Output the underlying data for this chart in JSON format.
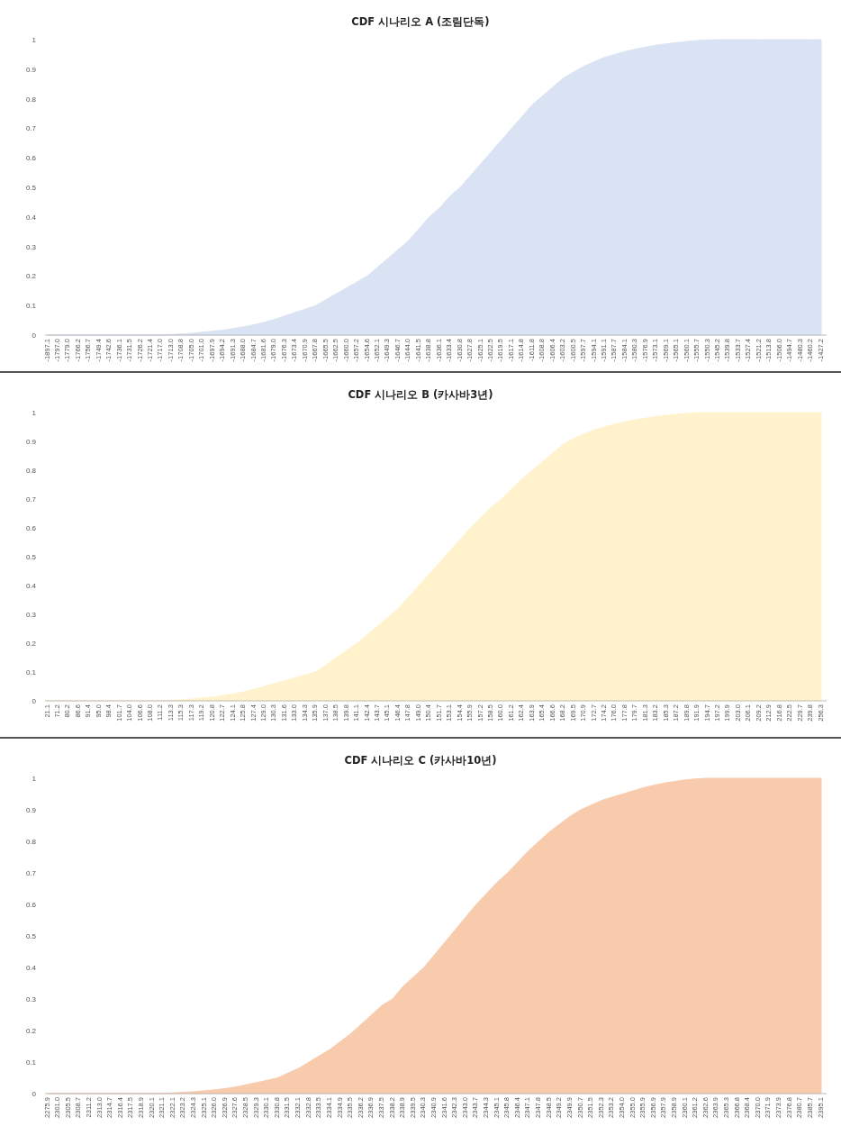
{
  "chart_data": [
    {
      "type": "area",
      "title": "CDF 시나리오 A (조림단독)",
      "categories": [
        "-1897.1",
        "-1797.0",
        "-1779.0",
        "-1766.2",
        "-1756.7",
        "-1749.4",
        "-1742.6",
        "-1736.1",
        "-1731.5",
        "-1726.2",
        "-1721.4",
        "-1717.0",
        "-1713.0",
        "-1708.8",
        "-1705.0",
        "-1701.0",
        "-1697.9",
        "-1694.2",
        "-1691.3",
        "-1688.0",
        "-1684.7",
        "-1681.6",
        "-1679.0",
        "-1676.3",
        "-1673.4",
        "-1670.9",
        "-1667.8",
        "-1665.5",
        "-1662.5",
        "-1660.0",
        "-1657.2",
        "-1654.6",
        "-1652.1",
        "-1649.3",
        "-1646.7",
        "-1644.0",
        "-1641.5",
        "-1638.8",
        "-1636.1",
        "-1633.4",
        "-1630.8",
        "-1627.8",
        "-1625.1",
        "-1622.5",
        "-1619.5",
        "-1617.1",
        "-1614.8",
        "-1611.8",
        "-1608.8",
        "-1606.4",
        "-1603.2",
        "-1600.5",
        "-1597.7",
        "-1594.1",
        "-1591.1",
        "-1587.7",
        "-1584.1",
        "-1580.3",
        "-1576.9",
        "-1573.1",
        "-1569.1",
        "-1565.1",
        "-1560.1",
        "-1555.7",
        "-1550.3",
        "-1545.2",
        "-1539.8",
        "-1533.7",
        "-1527.4",
        "-1521.2",
        "-1513.8",
        "-1506.0",
        "-1494.7",
        "-1480.3",
        "-1460.2",
        "-1427.2"
      ],
      "series": [
        {
          "color": "#dae3f3",
          "values": [
            0,
            0,
            0,
            0,
            0,
            0,
            0,
            0,
            0,
            0,
            0,
            0.001,
            0.002,
            0.004,
            0.006,
            0.01,
            0.013,
            0.017,
            0.022,
            0.028,
            0.035,
            0.043,
            0.053,
            0.065,
            0.077,
            0.088,
            0.1,
            0.12,
            0.14,
            0.16,
            0.18,
            0.2,
            0.23,
            0.26,
            0.29,
            0.32,
            0.36,
            0.4,
            0.43,
            0.47,
            0.5,
            0.54,
            0.58,
            0.62,
            0.66,
            0.7,
            0.74,
            0.78,
            0.81,
            0.84,
            0.87,
            0.89,
            0.91,
            0.925,
            0.94,
            0.95,
            0.96,
            0.968,
            0.975,
            0.981,
            0.986,
            0.99,
            0.994,
            0.997,
            0.999,
            1,
            1,
            1,
            1,
            1,
            1,
            1,
            1,
            1,
            1,
            1
          ]
        }
      ],
      "ylim": [
        0,
        1
      ],
      "yticks": [
        0,
        0.1,
        0.2,
        0.3,
        0.4,
        0.5,
        0.6,
        0.7,
        0.8,
        0.9,
        1
      ]
    },
    {
      "type": "area",
      "title": "CDF 시나리오 B (카사바3년)",
      "categories": [
        "21.1",
        "71.2",
        "80.2",
        "86.6",
        "91.4",
        "95.0",
        "98.4",
        "101.7",
        "104.0",
        "106.6",
        "108.0",
        "111.2",
        "113.3",
        "115.3",
        "117.3",
        "119.2",
        "120.8",
        "122.7",
        "124.1",
        "125.8",
        "127.4",
        "129.0",
        "130.3",
        "131.6",
        "133.0",
        "134.3",
        "135.9",
        "137.0",
        "138.5",
        "139.8",
        "141.1",
        "142.4",
        "143.7",
        "145.1",
        "146.4",
        "147.8",
        "149.0",
        "150.4",
        "151.7",
        "153.1",
        "154.4",
        "155.9",
        "157.2",
        "158.5",
        "160.0",
        "161.2",
        "162.4",
        "163.9",
        "165.4",
        "166.6",
        "168.2",
        "169.5",
        "170.9",
        "172.7",
        "174.2",
        "176.0",
        "177.8",
        "179.7",
        "181.3",
        "183.2",
        "185.3",
        "187.2",
        "189.8",
        "191.9",
        "194.7",
        "197.2",
        "199.9",
        "203.0",
        "206.1",
        "209.2",
        "212.9",
        "216.8",
        "222.5",
        "229.7",
        "239.8",
        "256.3"
      ],
      "series": [
        {
          "color": "#fff2cc",
          "values": [
            0,
            0,
            0,
            0,
            0,
            0,
            0,
            0,
            0,
            0,
            0,
            0,
            0.002,
            0.004,
            0.006,
            0.01,
            0.013,
            0.018,
            0.024,
            0.031,
            0.04,
            0.05,
            0.06,
            0.07,
            0.08,
            0.09,
            0.1,
            0.125,
            0.15,
            0.175,
            0.2,
            0.23,
            0.26,
            0.29,
            0.32,
            0.36,
            0.4,
            0.44,
            0.48,
            0.52,
            0.56,
            0.6,
            0.635,
            0.67,
            0.7,
            0.735,
            0.77,
            0.8,
            0.83,
            0.86,
            0.89,
            0.91,
            0.925,
            0.94,
            0.95,
            0.96,
            0.968,
            0.975,
            0.981,
            0.986,
            0.99,
            0.994,
            0.997,
            1,
            1,
            1,
            1,
            1,
            1,
            1,
            1,
            1,
            1,
            1,
            1,
            1
          ]
        }
      ],
      "ylim": [
        0,
        1
      ],
      "yticks": [
        0,
        0.1,
        0.2,
        0.3,
        0.4,
        0.5,
        0.6,
        0.7,
        0.8,
        0.9,
        1
      ]
    },
    {
      "type": "area",
      "title": "CDF 시나리오 C (카사바10년)",
      "categories": [
        "2275.9",
        "2301.0",
        "2305.5",
        "2308.7",
        "2311.2",
        "2313.0",
        "2314.7",
        "2316.4",
        "2317.5",
        "2318.9",
        "2320.1",
        "2321.1",
        "2322.1",
        "2323.2",
        "2324.3",
        "2325.1",
        "2326.0",
        "2326.9",
        "2327.6",
        "2328.5",
        "2329.3",
        "2330.1",
        "2330.8",
        "2331.5",
        "2332.1",
        "2332.8",
        "2333.5",
        "2334.1",
        "2334.9",
        "2335.5",
        "2336.2",
        "2336.9",
        "2337.5",
        "2338.2",
        "2338.9",
        "2339.5",
        "2340.3",
        "2340.9",
        "2341.6",
        "2342.3",
        "2343.0",
        "2343.7",
        "2344.3",
        "2345.1",
        "2345.8",
        "2346.4",
        "2347.1",
        "2347.8",
        "2348.5",
        "2349.2",
        "2349.9",
        "2350.7",
        "2351.5",
        "2352.3",
        "2353.2",
        "2354.0",
        "2355.0",
        "2355.9",
        "2356.9",
        "2357.9",
        "2358.9",
        "2360.1",
        "2361.2",
        "2362.6",
        "2363.9",
        "2365.3",
        "2366.8",
        "2368.4",
        "2370.0",
        "2371.9",
        "2373.9",
        "2376.8",
        "2380.7",
        "2385.7",
        "2395.1"
      ],
      "series": [
        {
          "color": "#f8cbad",
          "values": [
            0,
            0,
            0,
            0,
            0,
            0,
            0,
            0,
            0,
            0,
            0,
            0,
            0.002,
            0.004,
            0.006,
            0.009,
            0.012,
            0.016,
            0.021,
            0.028,
            0.035,
            0.042,
            0.05,
            0.065,
            0.08,
            0.1,
            0.12,
            0.14,
            0.165,
            0.19,
            0.22,
            0.25,
            0.28,
            0.3,
            0.34,
            0.37,
            0.4,
            0.44,
            0.48,
            0.52,
            0.56,
            0.6,
            0.635,
            0.67,
            0.7,
            0.735,
            0.77,
            0.8,
            0.83,
            0.855,
            0.88,
            0.9,
            0.915,
            0.93,
            0.94,
            0.95,
            0.96,
            0.97,
            0.978,
            0.985,
            0.99,
            0.995,
            0.998,
            1,
            1,
            1,
            1,
            1,
            1,
            1,
            1,
            1,
            1,
            1,
            1
          ]
        }
      ],
      "ylim": [
        0,
        1
      ],
      "yticks": [
        0,
        0.1,
        0.2,
        0.3,
        0.4,
        0.5,
        0.6,
        0.7,
        0.8,
        0.9,
        1
      ]
    }
  ]
}
